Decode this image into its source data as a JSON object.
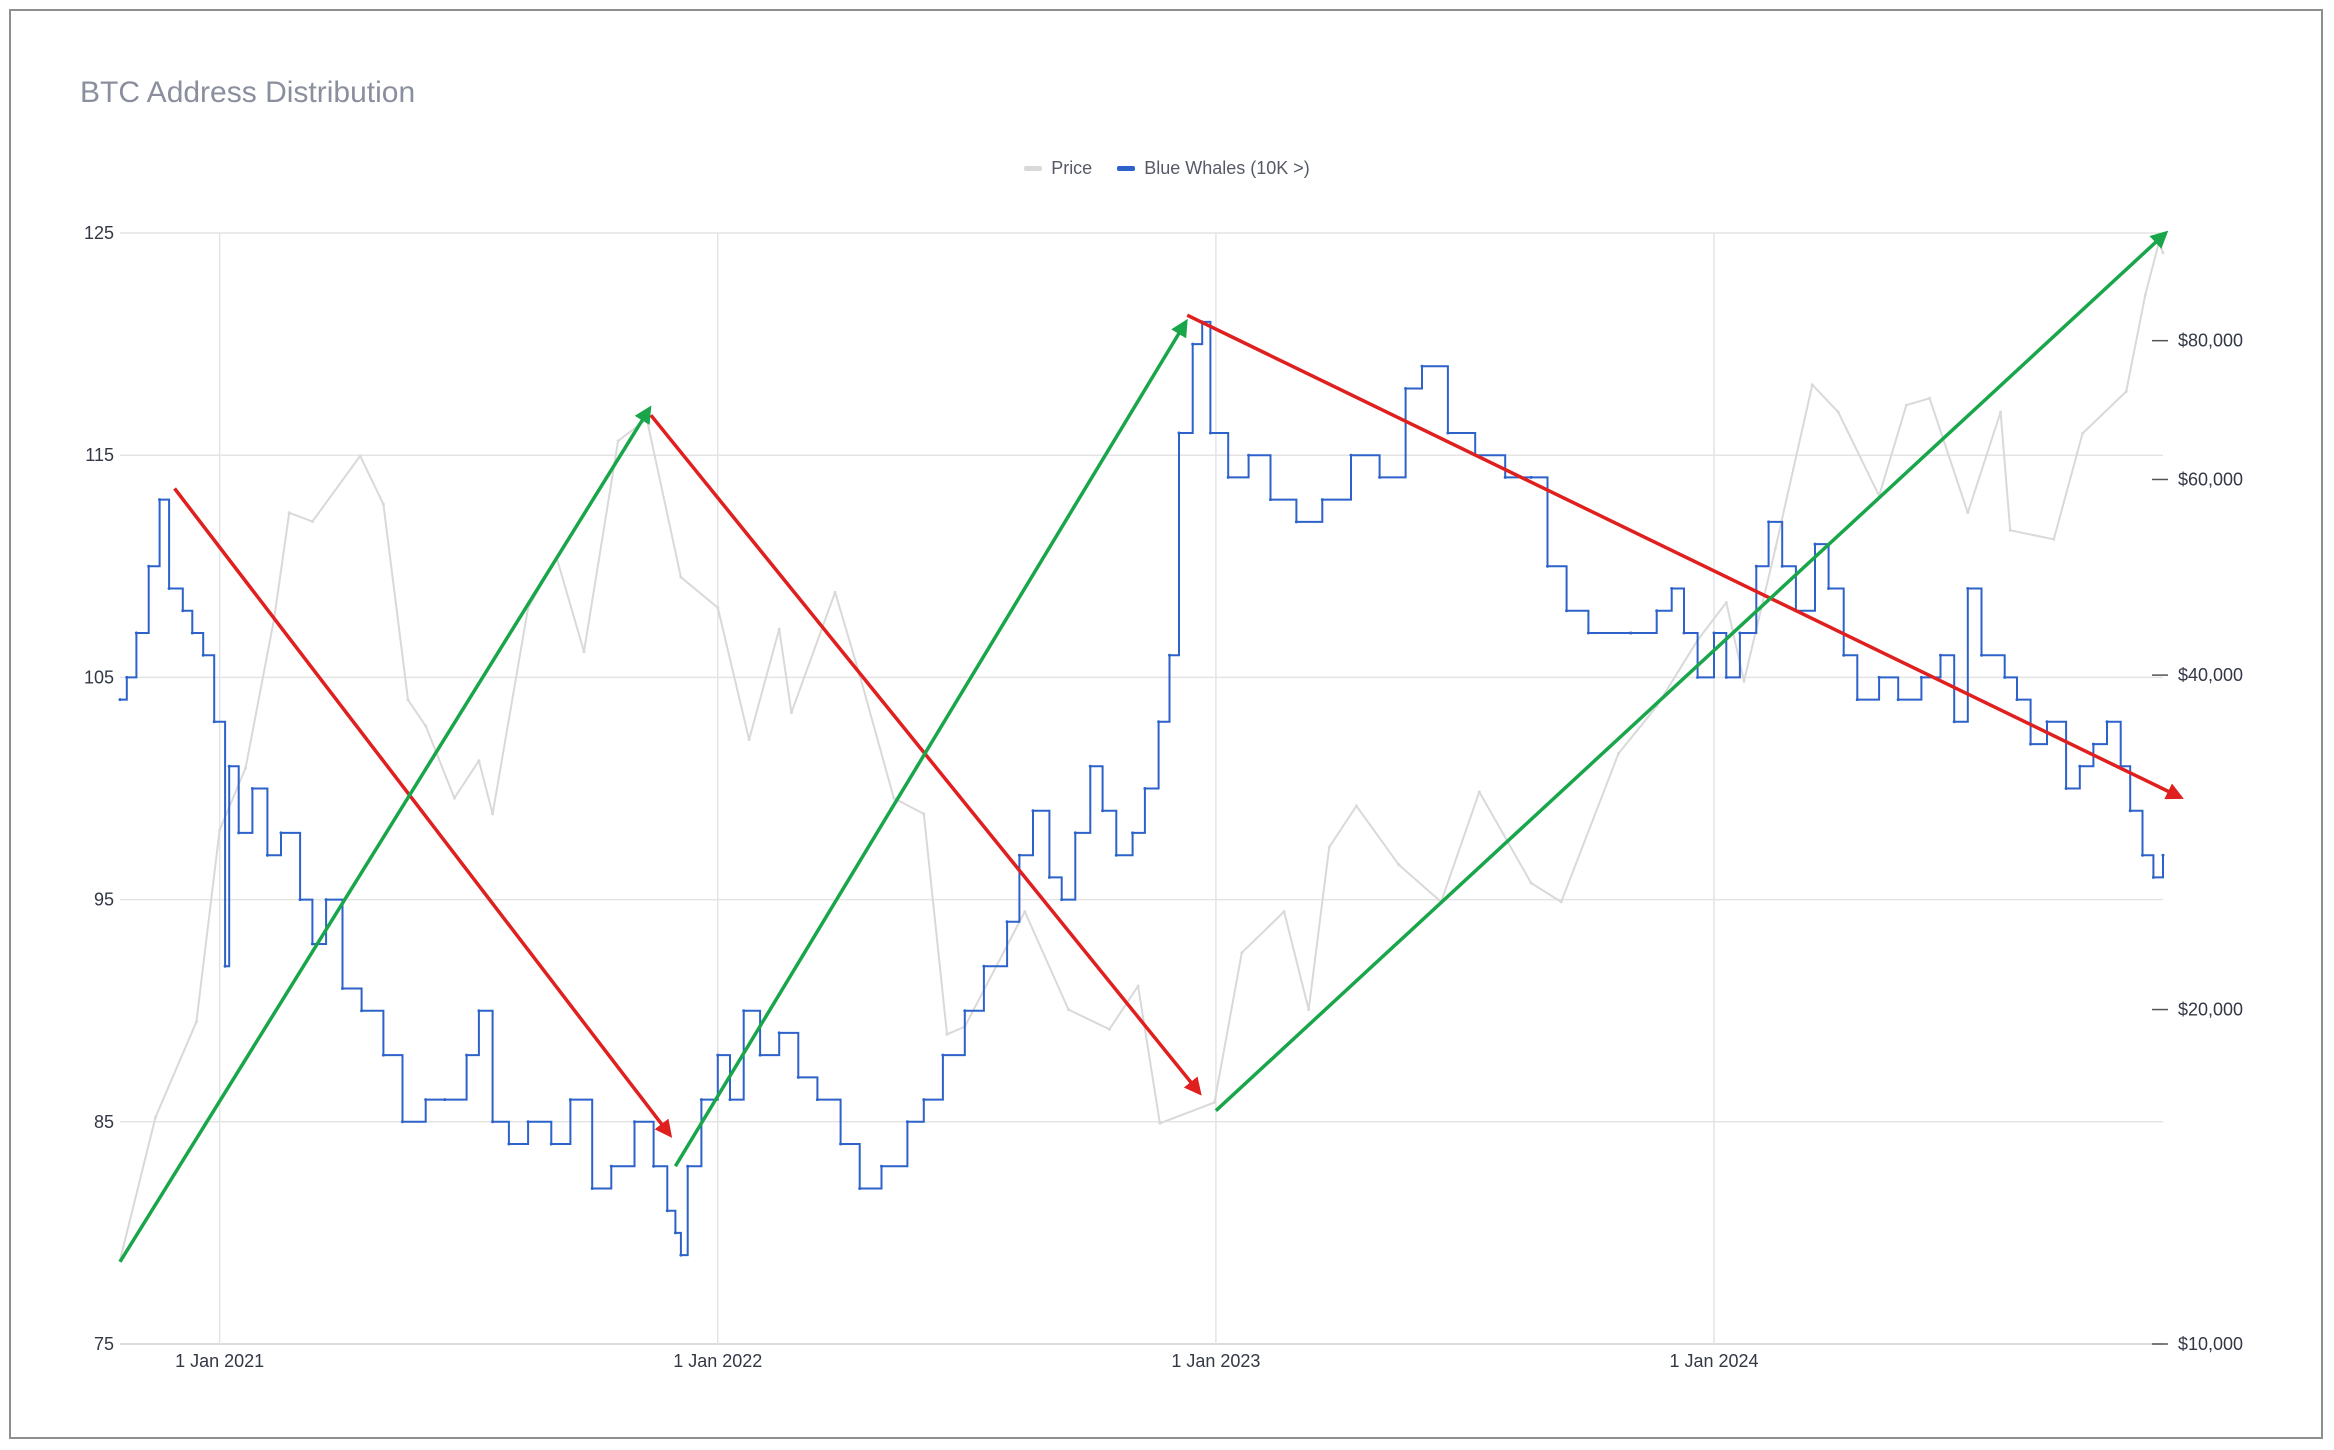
{
  "chart_data": {
    "type": "line",
    "title": "BTC Address Distribution",
    "legend": {
      "placement": "top-center"
    },
    "grid": true,
    "x_axis": {
      "type": "date",
      "range": [
        "2020-10-20",
        "2024-11-25"
      ],
      "ticks": [
        {
          "label": "1 Jan 2021",
          "date": "2021-01-01"
        },
        {
          "label": "1 Jan 2022",
          "date": "2022-01-01"
        },
        {
          "label": "1 Jan 2023",
          "date": "2023-01-01"
        },
        {
          "label": "1 Jan 2024",
          "date": "2024-01-01"
        }
      ]
    },
    "y_axis_left": {
      "range": [
        75,
        125
      ],
      "ticks": [
        {
          "label": "125",
          "value": 125
        },
        {
          "label": "115",
          "value": 115
        },
        {
          "label": "105",
          "value": 105
        },
        {
          "label": "95",
          "value": 95
        },
        {
          "label": "85",
          "value": 85
        },
        {
          "label": "75",
          "value": 75
        }
      ]
    },
    "y_axis_right": {
      "scale": "log",
      "range": [
        10000,
        100000
      ],
      "ticks": [
        {
          "label": "$80,000",
          "value": 80000
        },
        {
          "label": "$60,000",
          "value": 60000
        },
        {
          "label": "$40,000",
          "value": 40000
        },
        {
          "label": "$20,000",
          "value": 20000
        },
        {
          "label": "$10,000",
          "value": 10000
        }
      ]
    },
    "series": [
      {
        "name": "Price",
        "color": "#d9d9d9",
        "axis": "right",
        "points": [
          [
            "2020-10-20",
            11900
          ],
          [
            "2020-11-15",
            16000
          ],
          [
            "2020-12-15",
            19500
          ],
          [
            "2021-01-01",
            29000
          ],
          [
            "2021-01-20",
            33000
          ],
          [
            "2021-02-10",
            45000
          ],
          [
            "2021-02-21",
            56000
          ],
          [
            "2021-03-10",
            55000
          ],
          [
            "2021-04-14",
            63000
          ],
          [
            "2021-05-01",
            57000
          ],
          [
            "2021-05-19",
            38000
          ],
          [
            "2021-06-01",
            36000
          ],
          [
            "2021-06-22",
            31000
          ],
          [
            "2021-07-10",
            33500
          ],
          [
            "2021-07-20",
            30000
          ],
          [
            "2021-08-15",
            46000
          ],
          [
            "2021-09-05",
            51000
          ],
          [
            "2021-09-25",
            42000
          ],
          [
            "2021-10-20",
            65000
          ],
          [
            "2021-11-10",
            68000
          ],
          [
            "2021-12-05",
            49000
          ],
          [
            "2022-01-01",
            46000
          ],
          [
            "2022-01-24",
            35000
          ],
          [
            "2022-02-15",
            44000
          ],
          [
            "2022-02-24",
            37000
          ],
          [
            "2022-03-28",
            47500
          ],
          [
            "2022-04-15",
            40000
          ],
          [
            "2022-05-10",
            31000
          ],
          [
            "2022-06-01",
            30000
          ],
          [
            "2022-06-18",
            19000
          ],
          [
            "2022-07-01",
            19300
          ],
          [
            "2022-08-14",
            24500
          ],
          [
            "2022-09-15",
            20000
          ],
          [
            "2022-10-15",
            19200
          ],
          [
            "2022-11-05",
            21000
          ],
          [
            "2022-11-21",
            15800
          ],
          [
            "2022-12-31",
            16500
          ],
          [
            "2023-01-20",
            22500
          ],
          [
            "2023-02-20",
            24500
          ],
          [
            "2023-03-10",
            20000
          ],
          [
            "2023-03-25",
            28000
          ],
          [
            "2023-04-14",
            30500
          ],
          [
            "2023-05-15",
            27000
          ],
          [
            "2023-06-15",
            25000
          ],
          [
            "2023-07-13",
            31400
          ],
          [
            "2023-08-20",
            26000
          ],
          [
            "2023-09-11",
            25000
          ],
          [
            "2023-10-23",
            34000
          ],
          [
            "2023-11-20",
            37500
          ],
          [
            "2023-12-20",
            43000
          ],
          [
            "2024-01-10",
            46500
          ],
          [
            "2024-01-23",
            39500
          ],
          [
            "2024-02-15",
            52000
          ],
          [
            "2024-03-13",
            73000
          ],
          [
            "2024-04-01",
            69000
          ],
          [
            "2024-05-01",
            58000
          ],
          [
            "2024-05-21",
            70000
          ],
          [
            "2024-06-07",
            71000
          ],
          [
            "2024-07-05",
            56000
          ],
          [
            "2024-07-29",
            69000
          ],
          [
            "2024-08-05",
            54000
          ],
          [
            "2024-09-06",
            53000
          ],
          [
            "2024-09-27",
            66000
          ],
          [
            "2024-10-29",
            72000
          ],
          [
            "2024-11-12",
            88000
          ],
          [
            "2024-11-22",
            98000
          ],
          [
            "2024-11-25",
            96000
          ]
        ]
      },
      {
        "name": "Blue Whales (10K >)",
        "color": "#2c62c9",
        "axis": "left",
        "points": [
          [
            "2020-10-20",
            104
          ],
          [
            "2020-10-25",
            105
          ],
          [
            "2020-11-01",
            107
          ],
          [
            "2020-11-10",
            110
          ],
          [
            "2020-11-18",
            113
          ],
          [
            "2020-11-25",
            109
          ],
          [
            "2020-12-05",
            108
          ],
          [
            "2020-12-12",
            107
          ],
          [
            "2020-12-20",
            106
          ],
          [
            "2020-12-28",
            103
          ],
          [
            "2021-01-05",
            92
          ],
          [
            "2021-01-08",
            101
          ],
          [
            "2021-01-15",
            98
          ],
          [
            "2021-01-25",
            100
          ],
          [
            "2021-02-05",
            97
          ],
          [
            "2021-02-15",
            98
          ],
          [
            "2021-03-01",
            95
          ],
          [
            "2021-03-10",
            93
          ],
          [
            "2021-03-20",
            95
          ],
          [
            "2021-04-01",
            91
          ],
          [
            "2021-04-15",
            90
          ],
          [
            "2021-05-01",
            88
          ],
          [
            "2021-05-15",
            85
          ],
          [
            "2021-06-01",
            86
          ],
          [
            "2021-06-15",
            86
          ],
          [
            "2021-07-01",
            88
          ],
          [
            "2021-07-10",
            90
          ],
          [
            "2021-07-20",
            85
          ],
          [
            "2021-08-01",
            84
          ],
          [
            "2021-08-15",
            85
          ],
          [
            "2021-09-01",
            84
          ],
          [
            "2021-09-15",
            86
          ],
          [
            "2021-10-01",
            82
          ],
          [
            "2021-10-15",
            83
          ],
          [
            "2021-11-01",
            85
          ],
          [
            "2021-11-15",
            83
          ],
          [
            "2021-11-25",
            81
          ],
          [
            "2021-12-01",
            80
          ],
          [
            "2021-12-05",
            79
          ],
          [
            "2021-12-10",
            83
          ],
          [
            "2021-12-20",
            86
          ],
          [
            "2022-01-01",
            88
          ],
          [
            "2022-01-10",
            86
          ],
          [
            "2022-01-20",
            90
          ],
          [
            "2022-02-01",
            88
          ],
          [
            "2022-02-15",
            89
          ],
          [
            "2022-03-01",
            87
          ],
          [
            "2022-03-15",
            86
          ],
          [
            "2022-04-01",
            84
          ],
          [
            "2022-04-15",
            82
          ],
          [
            "2022-05-01",
            83
          ],
          [
            "2022-05-20",
            85
          ],
          [
            "2022-06-01",
            86
          ],
          [
            "2022-06-15",
            88
          ],
          [
            "2022-07-01",
            90
          ],
          [
            "2022-07-15",
            92
          ],
          [
            "2022-08-01",
            94
          ],
          [
            "2022-08-10",
            97
          ],
          [
            "2022-08-20",
            99
          ],
          [
            "2022-09-01",
            96
          ],
          [
            "2022-09-10",
            95
          ],
          [
            "2022-09-20",
            98
          ],
          [
            "2022-10-01",
            101
          ],
          [
            "2022-10-10",
            99
          ],
          [
            "2022-10-20",
            97
          ],
          [
            "2022-11-01",
            98
          ],
          [
            "2022-11-10",
            100
          ],
          [
            "2022-11-20",
            103
          ],
          [
            "2022-11-28",
            106
          ],
          [
            "2022-12-05",
            116
          ],
          [
            "2022-12-15",
            120
          ],
          [
            "2022-12-22",
            121
          ],
          [
            "2022-12-28",
            116
          ],
          [
            "2023-01-10",
            114
          ],
          [
            "2023-01-25",
            115
          ],
          [
            "2023-02-10",
            113
          ],
          [
            "2023-03-01",
            112
          ],
          [
            "2023-03-20",
            113
          ],
          [
            "2023-04-10",
            115
          ],
          [
            "2023-05-01",
            114
          ],
          [
            "2023-05-20",
            118
          ],
          [
            "2023-06-01",
            119
          ],
          [
            "2023-06-20",
            116
          ],
          [
            "2023-07-10",
            115
          ],
          [
            "2023-08-01",
            114
          ],
          [
            "2023-08-20",
            114
          ],
          [
            "2023-09-01",
            110
          ],
          [
            "2023-09-15",
            108
          ],
          [
            "2023-10-01",
            107
          ],
          [
            "2023-11-01",
            107
          ],
          [
            "2023-11-20",
            108
          ],
          [
            "2023-12-01",
            109
          ],
          [
            "2023-12-10",
            107
          ],
          [
            "2023-12-20",
            105
          ],
          [
            "2024-01-01",
            107
          ],
          [
            "2024-01-10",
            105
          ],
          [
            "2024-01-20",
            107
          ],
          [
            "2024-02-01",
            110
          ],
          [
            "2024-02-10",
            112
          ],
          [
            "2024-02-20",
            110
          ],
          [
            "2024-03-01",
            108
          ],
          [
            "2024-03-15",
            111
          ],
          [
            "2024-03-25",
            109
          ],
          [
            "2024-04-05",
            106
          ],
          [
            "2024-04-15",
            104
          ],
          [
            "2024-05-01",
            105
          ],
          [
            "2024-05-15",
            104
          ],
          [
            "2024-06-01",
            105
          ],
          [
            "2024-06-15",
            106
          ],
          [
            "2024-06-25",
            103
          ],
          [
            "2024-07-05",
            109
          ],
          [
            "2024-07-15",
            106
          ],
          [
            "2024-08-01",
            105
          ],
          [
            "2024-08-10",
            104
          ],
          [
            "2024-08-20",
            102
          ],
          [
            "2024-09-01",
            103
          ],
          [
            "2024-09-15",
            100
          ],
          [
            "2024-09-25",
            101
          ],
          [
            "2024-10-05",
            102
          ],
          [
            "2024-10-15",
            103
          ],
          [
            "2024-10-25",
            101
          ],
          [
            "2024-11-01",
            99
          ],
          [
            "2024-11-10",
            97
          ],
          [
            "2024-11-18",
            96
          ],
          [
            "2024-11-25",
            97
          ]
        ]
      }
    ],
    "annotations": [
      {
        "type": "arrow",
        "color": "#e01f1f",
        "from": [
          "2020-11-29",
          113.5
        ],
        "to": [
          "2021-11-27",
          84.4
        ]
      },
      {
        "type": "arrow",
        "color": "#19a64a",
        "from": [
          "2020-10-20",
          78.7
        ],
        "to": [
          "2021-11-12",
          117.1
        ]
      },
      {
        "type": "arrow",
        "color": "#e01f1f",
        "from": [
          "2021-11-13",
          116.8
        ],
        "to": [
          "2022-12-20",
          86.3
        ]
      },
      {
        "type": "arrow",
        "color": "#19a64a",
        "from": [
          "2021-12-01",
          83.0
        ],
        "to": [
          "2022-12-10",
          121.0
        ]
      },
      {
        "type": "arrow",
        "color": "#e01f1f",
        "from": [
          "2022-12-11",
          121.3
        ],
        "to": [
          "2024-12-08",
          99.6
        ]
      },
      {
        "type": "arrow",
        "color": "#19a64a",
        "from": [
          "2023-01-01",
          85.5
        ],
        "to": [
          "2024-11-27",
          125.0
        ]
      }
    ]
  }
}
